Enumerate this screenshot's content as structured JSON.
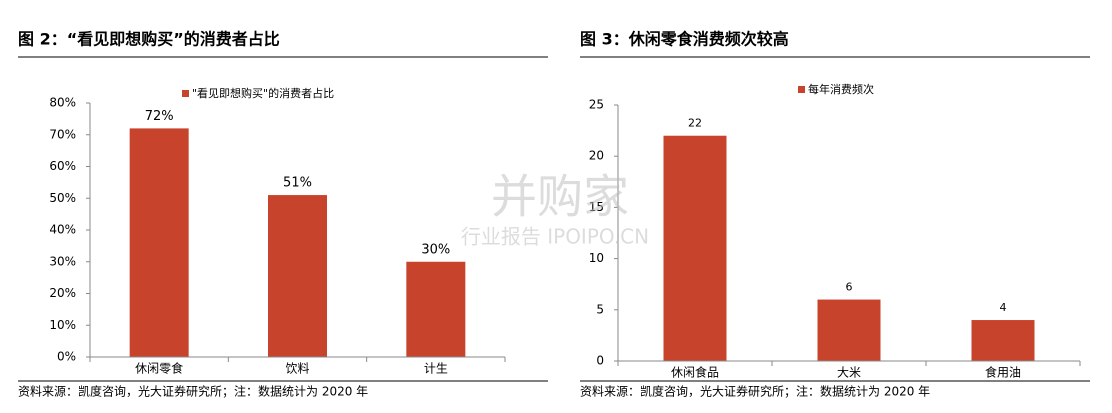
{
  "chart_data": [
    {
      "type": "bar",
      "title": "图 2：“看见即想购买”的消费者占比",
      "categories": [
        "休闲零食",
        "饮料",
        "计生"
      ],
      "series": [
        {
          "name": "\"看见即想购买\"的消费者占比",
          "color": "#c8432b",
          "values": [
            72,
            51,
            30
          ],
          "value_labels": [
            "72%",
            "51%",
            "30%"
          ]
        }
      ],
      "ylim": [
        0,
        80
      ],
      "yticks": [
        {
          "value": 0,
          "label": "0%"
        },
        {
          "value": 10,
          "label": "10%"
        },
        {
          "value": 20,
          "label": "20%"
        },
        {
          "value": 30,
          "label": "30%"
        },
        {
          "value": 40,
          "label": "40%"
        },
        {
          "value": 50,
          "label": "50%"
        },
        {
          "value": 60,
          "label": "60%"
        },
        {
          "value": 70,
          "label": "70%"
        },
        {
          "value": 80,
          "label": "80%"
        }
      ],
      "grid": false,
      "legend": "top",
      "source": "资料来源：凯度咨询，光大证券研究所；注：数据统计为 2020 年"
    },
    {
      "type": "bar",
      "title": "图 3：休闲零食消费频次较高",
      "categories": [
        "休闲食品",
        "大米",
        "食用油"
      ],
      "series": [
        {
          "name": "每年消费频次",
          "color": "#c8432b",
          "values": [
            22,
            6,
            4
          ]
        }
      ],
      "ylim": [
        0,
        25
      ],
      "yticks": [
        0,
        5,
        10,
        15,
        20,
        25
      ],
      "grid": false,
      "legend": "top",
      "source": "资料来源：凯度咨询，光大证券研究所；注：数据统计为 2020 年"
    }
  ],
  "watermark": {
    "title": "并购家",
    "subtitle": "行业报告 IPOIPO.CN"
  }
}
